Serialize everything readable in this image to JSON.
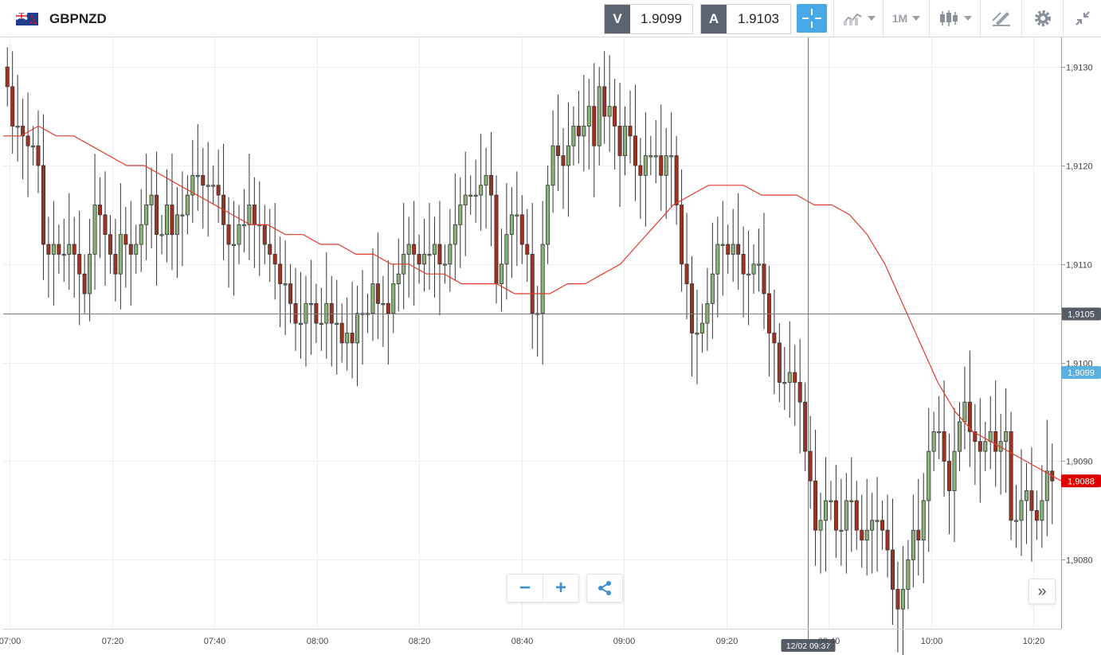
{
  "header": {
    "symbol": "GBPNZD",
    "bid_label": "V",
    "bid_value": "1.9099",
    "ask_label": "A",
    "ask_value": "1.9103",
    "timeframe": "1M",
    "icons": [
      "gb-nz-flag-icon",
      "crosshair-icon",
      "line-chart-icon",
      "candlestick-icon",
      "draw-icon",
      "gear-icon",
      "collapse-icon"
    ]
  },
  "controls": {
    "zoom_out": "−",
    "zoom_in": "+",
    "scroll_right": "»"
  },
  "colors": {
    "up": "#8ab37a",
    "down": "#a1311f",
    "ma": "#e23a2c",
    "accent": "#45a9e6",
    "bid_tag": "#5c6472",
    "current_price_bg": "#e00000",
    "bid_marker_bg": "#5bb0de"
  },
  "chart_data": {
    "type": "candlestick",
    "symbol": "GBPNZD",
    "interval": "1M",
    "ylim": [
      1.9073,
      1.9133
    ],
    "y_ticks": [
      "1,9130",
      "1,9120",
      "1,9110",
      "1,9100",
      "1,9090",
      "1,9080"
    ],
    "x_ticks": [
      "07:00",
      "07:20",
      "07:40",
      "08:00",
      "08:20",
      "08:40",
      "09:00",
      "09:20",
      "09:40",
      "10:00",
      "10:20"
    ],
    "crosshair": {
      "time": "12/02 09:37",
      "price": "1,9105"
    },
    "bid_marker": "1,9099",
    "current_price": "1,9088",
    "closes": [
      1.9128,
      1.9124,
      1.9124,
      1.9123,
      1.9122,
      1.9122,
      1.912,
      1.9112,
      1.9111,
      1.9112,
      1.9111,
      1.9111,
      1.9112,
      1.9111,
      1.9109,
      1.9107,
      1.9111,
      1.9116,
      1.9115,
      1.9113,
      1.9111,
      1.9109,
      1.9113,
      1.9112,
      1.9111,
      1.9112,
      1.9114,
      1.9116,
      1.9117,
      1.9113,
      1.9113,
      1.9116,
      1.9113,
      1.9115,
      1.9115,
      1.9117,
      1.9119,
      1.9119,
      1.9118,
      1.9118,
      1.9118,
      1.9117,
      1.9114,
      1.9112,
      1.9112,
      1.9114,
      1.9114,
      1.9116,
      1.9114,
      1.9114,
      1.9112,
      1.9111,
      1.911,
      1.9108,
      1.9108,
      1.9106,
      1.9104,
      1.9104,
      1.9106,
      1.9106,
      1.9104,
      1.9104,
      1.9106,
      1.9104,
      1.9104,
      1.9102,
      1.9103,
      1.9102,
      1.9105,
      1.9105,
      1.9105,
      1.9108,
      1.9106,
      1.9106,
      1.9105,
      1.9108,
      1.9109,
      1.9111,
      1.9112,
      1.9111,
      1.911,
      1.9111,
      1.9111,
      1.9112,
      1.911,
      1.911,
      1.9112,
      1.9114,
      1.9116,
      1.9117,
      1.9117,
      1.9117,
      1.9118,
      1.9119,
      1.9117,
      1.9108,
      1.911,
      1.9113,
      1.9115,
      1.9115,
      1.9112,
      1.9111,
      1.9105,
      1.9105,
      1.9112,
      1.9118,
      1.9122,
      1.9121,
      1.912,
      1.9122,
      1.9124,
      1.9123,
      1.9124,
      1.9126,
      1.9122,
      1.9128,
      1.9125,
      1.9126,
      1.9124,
      1.9121,
      1.9124,
      1.9123,
      1.912,
      1.9119,
      1.9121,
      1.9121,
      1.9121,
      1.9119,
      1.9121,
      1.9121,
      1.9116,
      1.911,
      1.9108,
      1.9103,
      1.9103,
      1.9104,
      1.9106,
      1.9109,
      1.9112,
      1.9112,
      1.9111,
      1.9112,
      1.9111,
      1.9109,
      1.9109,
      1.911,
      1.911,
      1.9107,
      1.9103,
      1.9102,
      1.9098,
      1.9098,
      1.9099,
      1.9098,
      1.9096,
      1.9091,
      1.9088,
      1.9083,
      1.9084,
      1.9086,
      1.9086,
      1.9083,
      1.9083,
      1.9086,
      1.9086,
      1.9083,
      1.9082,
      1.9083,
      1.9084,
      1.9084,
      1.9083,
      1.9081,
      1.9077,
      1.9075,
      1.9077,
      1.908,
      1.9083,
      1.9082,
      1.9086,
      1.9091,
      1.9093,
      1.9093,
      1.909,
      1.9087,
      1.9091,
      1.9094,
      1.9096,
      1.9093,
      1.9092,
      1.9091,
      1.9092,
      1.9093,
      1.9091,
      1.9092,
      1.9093,
      1.9084,
      1.9084,
      1.9086,
      1.9087,
      1.9085,
      1.9084,
      1.9086,
      1.9089,
      1.9088
    ],
    "ma_values": [
      1.9123,
      1.9123,
      1.9124,
      1.9123,
      1.9123,
      1.9122,
      1.9121,
      1.912,
      1.912,
      1.9119,
      1.9118,
      1.9117,
      1.9116,
      1.9115,
      1.9114,
      1.9114,
      1.9113,
      1.9113,
      1.9112,
      1.9112,
      1.9111,
      1.9111,
      1.911,
      1.911,
      1.9109,
      1.9109,
      1.9108,
      1.9108,
      1.9108,
      1.9107,
      1.9107,
      1.9107,
      1.9108,
      1.9108,
      1.9109,
      1.911,
      1.9112,
      1.9114,
      1.9116,
      1.9117,
      1.9118,
      1.9118,
      1.9118,
      1.9117,
      1.9117,
      1.9117,
      1.9116,
      1.9116,
      1.9115,
      1.9113,
      1.911,
      1.9106,
      1.9102,
      1.9098,
      1.9095,
      1.9093,
      1.9092,
      1.9091,
      1.909,
      1.9089,
      1.9088
    ],
    "y_label": "",
    "x_label": "",
    "grid": true
  }
}
